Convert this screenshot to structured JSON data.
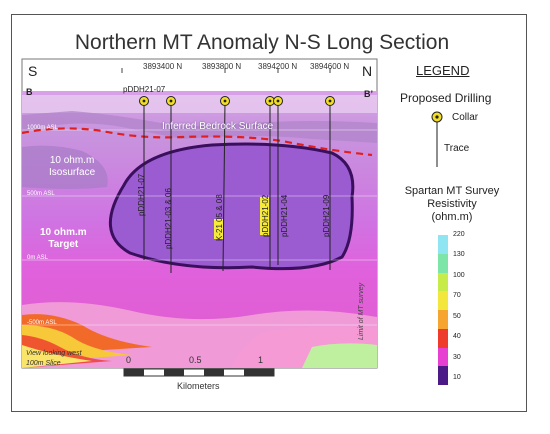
{
  "title": "Northern MT Anomaly N-S Long Section",
  "section": {
    "south_label": "S",
    "north_label": "N",
    "b_label": "B",
    "b_prime_label": "B’",
    "northings": [
      "3893400 N",
      "3893800 N",
      "3894200 N",
      "3894600 N"
    ],
    "top_hole_label": "pDDH21-07",
    "bedrock_label": "Inferred Bedrock Surface",
    "elevations": [
      "1000m ASL",
      "500m ASL",
      "0m ASL",
      "-500m ASL"
    ],
    "isosurface_label": [
      "10 ohm.m",
      "Isosurface"
    ],
    "target_label": [
      "10 ohm.m",
      "Target"
    ],
    "hole_labels": [
      "pDDH21-07",
      "pDDH21-03 & 06",
      "K-21 05 & 08",
      "pDDH21-02",
      "pDDH21-04",
      "pDDH21-09"
    ],
    "limit_label": "Limit of MT survey",
    "view_label": "View looking west",
    "slice_label": "100m Slice"
  },
  "scale": {
    "ticks": [
      "0",
      "0.5",
      "1"
    ],
    "unit": "Kilometers"
  },
  "legend": {
    "title": "LEGEND",
    "proposed": "Proposed Drilling",
    "collar": "Collar",
    "trace": "Trace",
    "resistivity_title": [
      "Spartan MT Survey",
      "Resistivity",
      "(ohm.m)"
    ],
    "bins": [
      {
        "value": "220",
        "color": "#8fe6f2"
      },
      {
        "value": "130",
        "color": "#7ee5a8"
      },
      {
        "value": "100",
        "color": "#c7ec4a"
      },
      {
        "value": "70",
        "color": "#f3e73e"
      },
      {
        "value": "50",
        "color": "#f6a630"
      },
      {
        "value": "40",
        "color": "#ef3b2c"
      },
      {
        "value": "30",
        "color": "#e63fd1"
      },
      {
        "value": "10",
        "color": "#4b1a86"
      }
    ]
  },
  "colors": {
    "collar": "#f2dd27",
    "bedrock_line": "#e02020",
    "target_outline": "#3a0f5e"
  }
}
